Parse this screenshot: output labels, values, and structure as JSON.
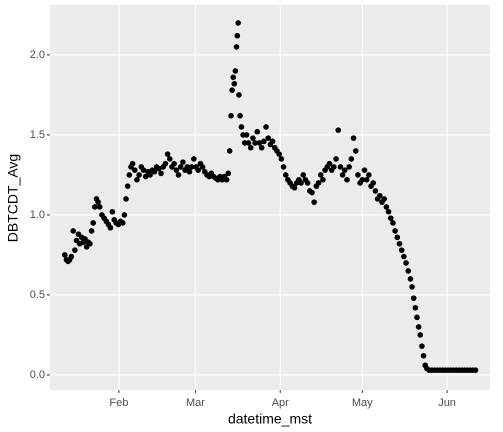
{
  "chart_data": {
    "type": "scatter",
    "y_label": "DBTCDT_Avg",
    "x_label": "datetime_mst",
    "color": "#000000",
    "grid": true,
    "xlim": [
      6.8,
      167.7
    ],
    "xticks": [
      {
        "value": 32,
        "label": "Feb"
      },
      {
        "value": 60,
        "label": "Mar"
      },
      {
        "value": 91,
        "label": "Apr"
      },
      {
        "value": 121,
        "label": "May"
      },
      {
        "value": 152,
        "label": "Jun"
      }
    ],
    "ylim": [
      -0.094,
      2.312
    ],
    "yticks": [
      {
        "value": 0,
        "label": "0.0"
      },
      {
        "value": 0.5,
        "label": "0.5"
      },
      {
        "value": 1,
        "label": "1.0"
      },
      {
        "value": 1.5,
        "label": "1.5"
      },
      {
        "value": 2,
        "label": "2.0"
      }
    ],
    "x": [
      12.2,
      12.8,
      13.4,
      14,
      14.6,
      15.3,
      15.9,
      16.5,
      17.2,
      17.7,
      18.4,
      19,
      19.6,
      20.2,
      20.8,
      21.4,
      22,
      22.6,
      23.2,
      23.8,
      24.4,
      25,
      25.8,
      26.6,
      27.4,
      28.2,
      28.9,
      29.6,
      30.3,
      31,
      31.8,
      32.6,
      33.4,
      34,
      34.6,
      35.2,
      35.8,
      36.4,
      37,
      37.8,
      38.6,
      39.4,
      40.2,
      41,
      41.8,
      42.6,
      43.4,
      44.2,
      45,
      45.8,
      46.6,
      47.4,
      48.2,
      49,
      49.8,
      50.6,
      51.4,
      52.2,
      53,
      53.8,
      54.6,
      55.4,
      56.2,
      57,
      57.8,
      58.6,
      59.4,
      60.2,
      61,
      61.8,
      62.6,
      63.4,
      64.2,
      65,
      65.8,
      66.6,
      67.4,
      68.2,
      69,
      69.8,
      70.6,
      71.4,
      72,
      72.5,
      73,
      73.4,
      73.8,
      74.2,
      74.6,
      75,
      75.3,
      75.6,
      75.9,
      76.3,
      76.8,
      77.4,
      78,
      78.7,
      79.4,
      80.2,
      81,
      81.8,
      82.6,
      83.4,
      84.2,
      85,
      85.8,
      86.6,
      87.4,
      88.2,
      89,
      89.8,
      90.6,
      91.4,
      92.2,
      93,
      93.8,
      94.6,
      95.4,
      96.2,
      97,
      97.8,
      98.6,
      99.4,
      100.2,
      101,
      101.8,
      102.6,
      103.4,
      104.2,
      105,
      105.8,
      106.6,
      107.4,
      108.2,
      109,
      109.8,
      110.6,
      111.4,
      112.2,
      113,
      113.8,
      114.6,
      115.4,
      116.2,
      117,
      117.8,
      118.6,
      119.4,
      120.2,
      121,
      121.8,
      122.6,
      123.4,
      124.2,
      125,
      125.8,
      126.6,
      127.4,
      128.2,
      129,
      129.8,
      130.6,
      131.4,
      132.2,
      133,
      133.8,
      134.6,
      135.4,
      136.2,
      137,
      137.8,
      138.6,
      139.2,
      139.8,
      140.4,
      141,
      141.6,
      142.2,
      142.8,
      143.4,
      144,
      144.6,
      145.4,
      146.4,
      147.4,
      148.4,
      149.4,
      150.4,
      151.4,
      152.4,
      153.4,
      154.4,
      155.4,
      156.4,
      157.4,
      158.4,
      159.4,
      160.4,
      161.4,
      162.4
    ],
    "values": [
      0.75,
      0.72,
      0.71,
      0.72,
      0.74,
      0.9,
      0.78,
      0.84,
      0.88,
      0.82,
      0.86,
      0.83,
      0.85,
      0.8,
      0.83,
      0.82,
      0.9,
      0.95,
      1.05,
      1.1,
      1.08,
      1.05,
      1.0,
      0.98,
      0.96,
      0.94,
      0.92,
      1.02,
      0.97,
      0.95,
      0.94,
      0.96,
      0.95,
      1.0,
      1.1,
      1.18,
      1.25,
      1.3,
      1.32,
      1.28,
      1.22,
      1.25,
      1.3,
      1.28,
      1.24,
      1.27,
      1.25,
      1.28,
      1.27,
      1.3,
      1.29,
      1.26,
      1.3,
      1.32,
      1.38,
      1.35,
      1.3,
      1.32,
      1.28,
      1.25,
      1.3,
      1.33,
      1.28,
      1.3,
      1.27,
      1.3,
      1.35,
      1.3,
      1.28,
      1.32,
      1.3,
      1.27,
      1.25,
      1.24,
      1.26,
      1.24,
      1.23,
      1.22,
      1.24,
      1.22,
      1.24,
      1.22,
      1.26,
      1.4,
      1.62,
      1.78,
      1.86,
      1.82,
      1.9,
      2.05,
      2.12,
      2.2,
      1.75,
      1.62,
      1.55,
      1.5,
      1.45,
      1.5,
      1.45,
      1.42,
      1.48,
      1.45,
      1.52,
      1.45,
      1.42,
      1.46,
      1.55,
      1.48,
      1.44,
      1.46,
      1.42,
      1.4,
      1.38,
      1.35,
      1.3,
      1.25,
      1.22,
      1.2,
      1.18,
      1.17,
      1.2,
      1.22,
      1.2,
      1.25,
      1.22,
      1.2,
      1.15,
      1.14,
      1.08,
      1.18,
      1.2,
      1.25,
      1.22,
      1.28,
      1.3,
      1.32,
      1.28,
      1.3,
      1.35,
      1.53,
      1.3,
      1.25,
      1.28,
      1.22,
      1.3,
      1.35,
      1.48,
      1.4,
      1.25,
      1.2,
      1.22,
      1.28,
      1.22,
      1.25,
      1.18,
      1.2,
      1.15,
      1.1,
      1.12,
      1.08,
      1.1,
      1.05,
      1.02,
      0.98,
      0.95,
      0.9,
      0.86,
      0.82,
      0.78,
      0.74,
      0.7,
      0.65,
      0.6,
      0.55,
      0.48,
      0.42,
      0.36,
      0.3,
      0.25,
      0.18,
      0.12,
      0.06,
      0.04,
      0.03,
      0.03,
      0.03,
      0.03,
      0.03,
      0.03,
      0.03,
      0.03,
      0.03,
      0.03,
      0.03,
      0.03,
      0.03,
      0.03,
      0.03,
      0.03,
      0.03,
      0.03
    ]
  }
}
